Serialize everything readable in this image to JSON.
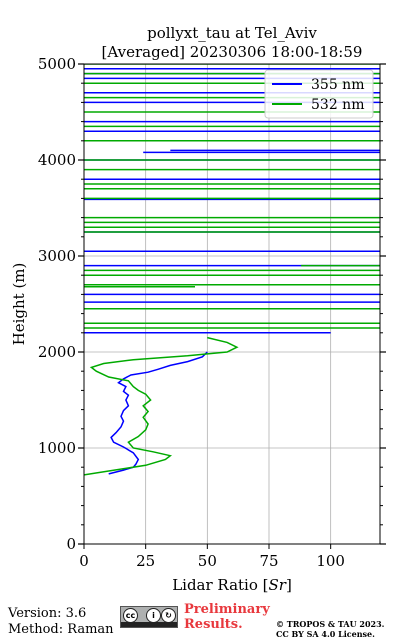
{
  "chart_data": {
    "type": "line",
    "title_line1": "pollyxt_tau at Tel_Aviv",
    "title_line2": "[Averaged] 20230306 18:00-18:59",
    "xlabel": "Lidar Ratio [",
    "xlabel_unit": "Sr",
    "xlabel_end": "]",
    "ylabel": "Height (m)",
    "xlim": [
      0,
      120
    ],
    "ylim": [
      0,
      5000
    ],
    "x_ticks": [
      0,
      25,
      50,
      75,
      100
    ],
    "x_tick_labels": [
      "0",
      "25",
      "50",
      "75",
      "100"
    ],
    "y_ticks": [
      0,
      1000,
      2000,
      3000,
      4000,
      5000
    ],
    "y_tick_labels": [
      "0",
      "1000",
      "2000",
      "3000",
      "4000",
      "5000"
    ],
    "y_minor_step": 200,
    "grid": true,
    "legend_position": "top-right",
    "series": [
      {
        "name": "355 nm",
        "color": "#0000ff",
        "profile": [
          [
            10,
            730
          ],
          [
            16,
            770
          ],
          [
            20,
            800
          ],
          [
            21,
            830
          ],
          [
            22,
            880
          ],
          [
            20,
            950
          ],
          [
            16,
            1010
          ],
          [
            12,
            1060
          ],
          [
            11,
            1110
          ],
          [
            13,
            1160
          ],
          [
            15,
            1220
          ],
          [
            16,
            1280
          ],
          [
            15,
            1330
          ],
          [
            16,
            1390
          ],
          [
            18,
            1440
          ],
          [
            17,
            1500
          ],
          [
            18,
            1550
          ],
          [
            16,
            1590
          ],
          [
            17,
            1640
          ],
          [
            14,
            1680
          ],
          [
            16,
            1720
          ],
          [
            19,
            1760
          ],
          [
            26,
            1790
          ],
          [
            30,
            1820
          ],
          [
            35,
            1860
          ],
          [
            42,
            1900
          ],
          [
            48,
            1950
          ],
          [
            50,
            2000
          ]
        ],
        "lines": [
          [
            3590,
            0,
            120
          ],
          [
            3700,
            40,
            120
          ],
          [
            3800,
            0,
            120
          ],
          [
            4000,
            0,
            120
          ],
          [
            4080,
            24,
            120
          ],
          [
            4100,
            35,
            120
          ],
          [
            4300,
            0,
            120
          ],
          [
            4400,
            0,
            120
          ],
          [
            4600,
            0,
            120
          ],
          [
            4700,
            0,
            120
          ],
          [
            4950,
            0,
            120
          ],
          [
            4900,
            0,
            120
          ],
          [
            4850,
            0,
            120
          ],
          [
            3250,
            0,
            120
          ],
          [
            3050,
            0,
            120
          ],
          [
            2900,
            0,
            120
          ],
          [
            2600,
            0,
            120
          ],
          [
            2520,
            0,
            120
          ],
          [
            2200,
            0,
            100
          ]
        ]
      },
      {
        "name": "532 nm",
        "color": "#00aa00",
        "profile": [
          [
            0,
            720
          ],
          [
            10,
            760
          ],
          [
            25,
            820
          ],
          [
            33,
            880
          ],
          [
            35,
            920
          ],
          [
            28,
            960
          ],
          [
            20,
            1000
          ],
          [
            18,
            1060
          ],
          [
            22,
            1120
          ],
          [
            25,
            1190
          ],
          [
            26,
            1250
          ],
          [
            24,
            1320
          ],
          [
            26,
            1380
          ],
          [
            24,
            1440
          ],
          [
            27,
            1500
          ],
          [
            25,
            1560
          ],
          [
            22,
            1600
          ],
          [
            20,
            1640
          ],
          [
            18,
            1700
          ],
          [
            10,
            1740
          ],
          [
            5,
            1800
          ],
          [
            3,
            1840
          ],
          [
            8,
            1880
          ],
          [
            20,
            1920
          ],
          [
            42,
            1960
          ],
          [
            58,
            2000
          ],
          [
            62,
            2050
          ],
          [
            58,
            2100
          ],
          [
            50,
            2150
          ]
        ],
        "lines": [
          [
            3300,
            0,
            120
          ],
          [
            3400,
            0,
            120
          ],
          [
            3350,
            0,
            120
          ],
          [
            3250,
            0,
            120
          ],
          [
            3600,
            0,
            120
          ],
          [
            3700,
            0,
            120
          ],
          [
            3750,
            0,
            120
          ],
          [
            3900,
            0,
            120
          ],
          [
            4000,
            0,
            120
          ],
          [
            4200,
            0,
            120
          ],
          [
            4350,
            0,
            120
          ],
          [
            4500,
            0,
            120
          ],
          [
            4650,
            0,
            120
          ],
          [
            4800,
            0,
            120
          ],
          [
            4900,
            0,
            120
          ],
          [
            5000,
            0,
            120
          ],
          [
            2850,
            0,
            120
          ],
          [
            2800,
            0,
            120
          ],
          [
            2700,
            0,
            120
          ],
          [
            2450,
            0,
            120
          ],
          [
            2300,
            0,
            120
          ],
          [
            2250,
            0,
            120
          ],
          [
            2680,
            0,
            45
          ],
          [
            2900,
            88,
            120
          ]
        ]
      }
    ]
  },
  "footer": {
    "version": "Version: 3.6",
    "method": "Method: Raman",
    "prelim_line1": "Preliminary",
    "prelim_line2": "Results.",
    "copyright_line1": "© TROPOS & TAU 2023.",
    "copyright_line2": "CC BY SA 4.0 License."
  },
  "license_badge": {
    "icon": "cc-by-sa-icon"
  }
}
